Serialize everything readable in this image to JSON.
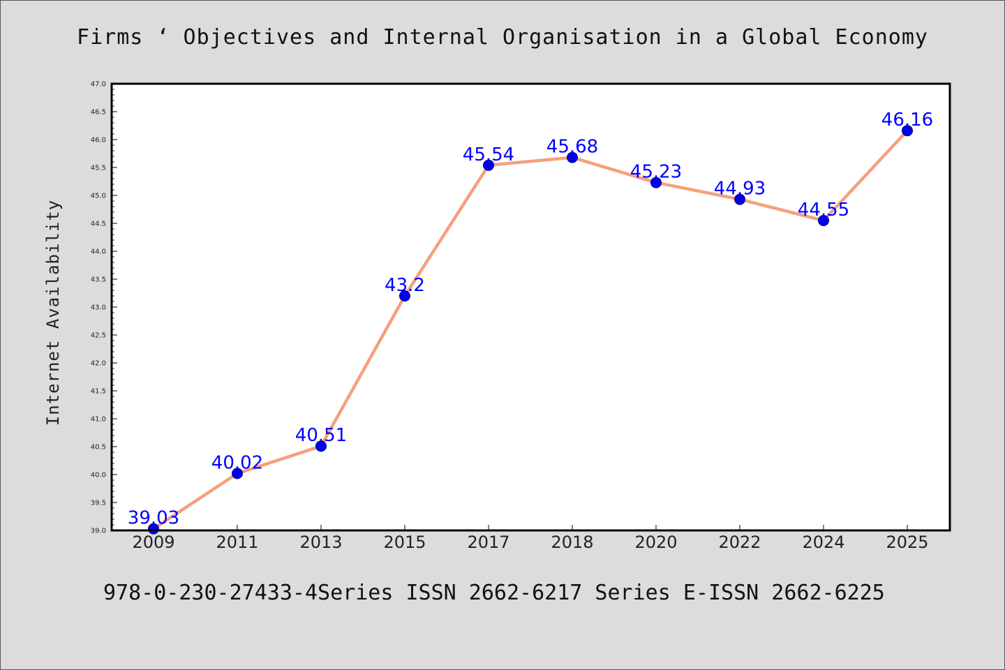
{
  "chart_data": {
    "type": "line",
    "title": "Firms ‘ Objectives and Internal Organisation in a Global Economy",
    "xlabel": "",
    "ylabel": "Internet Availability",
    "categories": [
      "2009",
      "2011",
      "2013",
      "2015",
      "2017",
      "2018",
      "2020",
      "2022",
      "2024",
      "2025"
    ],
    "series": [
      {
        "values": [
          39.03,
          40.02,
          40.51,
          43.2,
          45.54,
          45.68,
          45.23,
          44.93,
          44.55,
          46.16
        ],
        "line_color": "#f4a07e",
        "marker_color": "#0000ee",
        "label_color": "#0000ff"
      }
    ],
    "ylim": [
      39.0,
      47.0
    ],
    "y_ticks": [
      "39.0",
      "39.5",
      "40.0",
      "40.5",
      "41.0",
      "41.5",
      "42.0",
      "42.5",
      "43.0",
      "43.5",
      "44.0",
      "44.5",
      "45.0",
      "45.5",
      "46.0",
      "46.5",
      "47.0"
    ],
    "data_labels": [
      "39.03",
      "40.02",
      "40.51",
      "43.2",
      "45.54",
      "45.68",
      "45.23",
      "44.93",
      "44.55",
      "46.16"
    ],
    "grid": false,
    "legend": "none"
  },
  "footer": {
    "text": "978-0-230-27433-4Series ISSN 2662-6217 Series E-ISSN 2662-6225"
  }
}
